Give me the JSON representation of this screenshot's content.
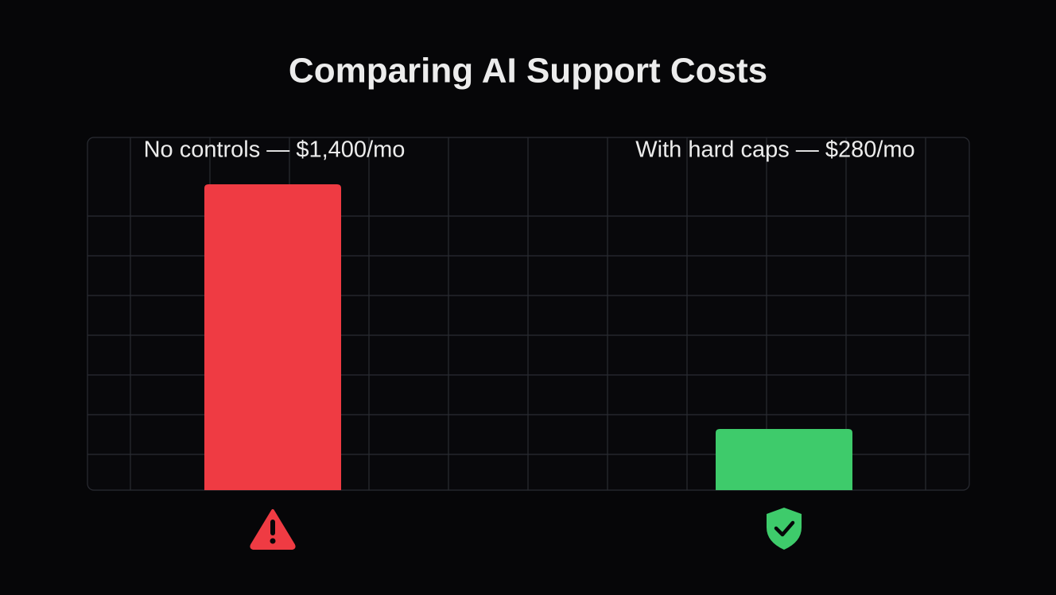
{
  "chart_data": {
    "type": "bar",
    "title": "Comparing AI Support Costs",
    "values": [
      1400,
      280
    ],
    "value_labels": [
      "No controls — $1,400/mo",
      "With hard caps — $280/mo"
    ],
    "colors": [
      "#ef3b43",
      "#3ecb6b"
    ],
    "grid": true
  }
}
